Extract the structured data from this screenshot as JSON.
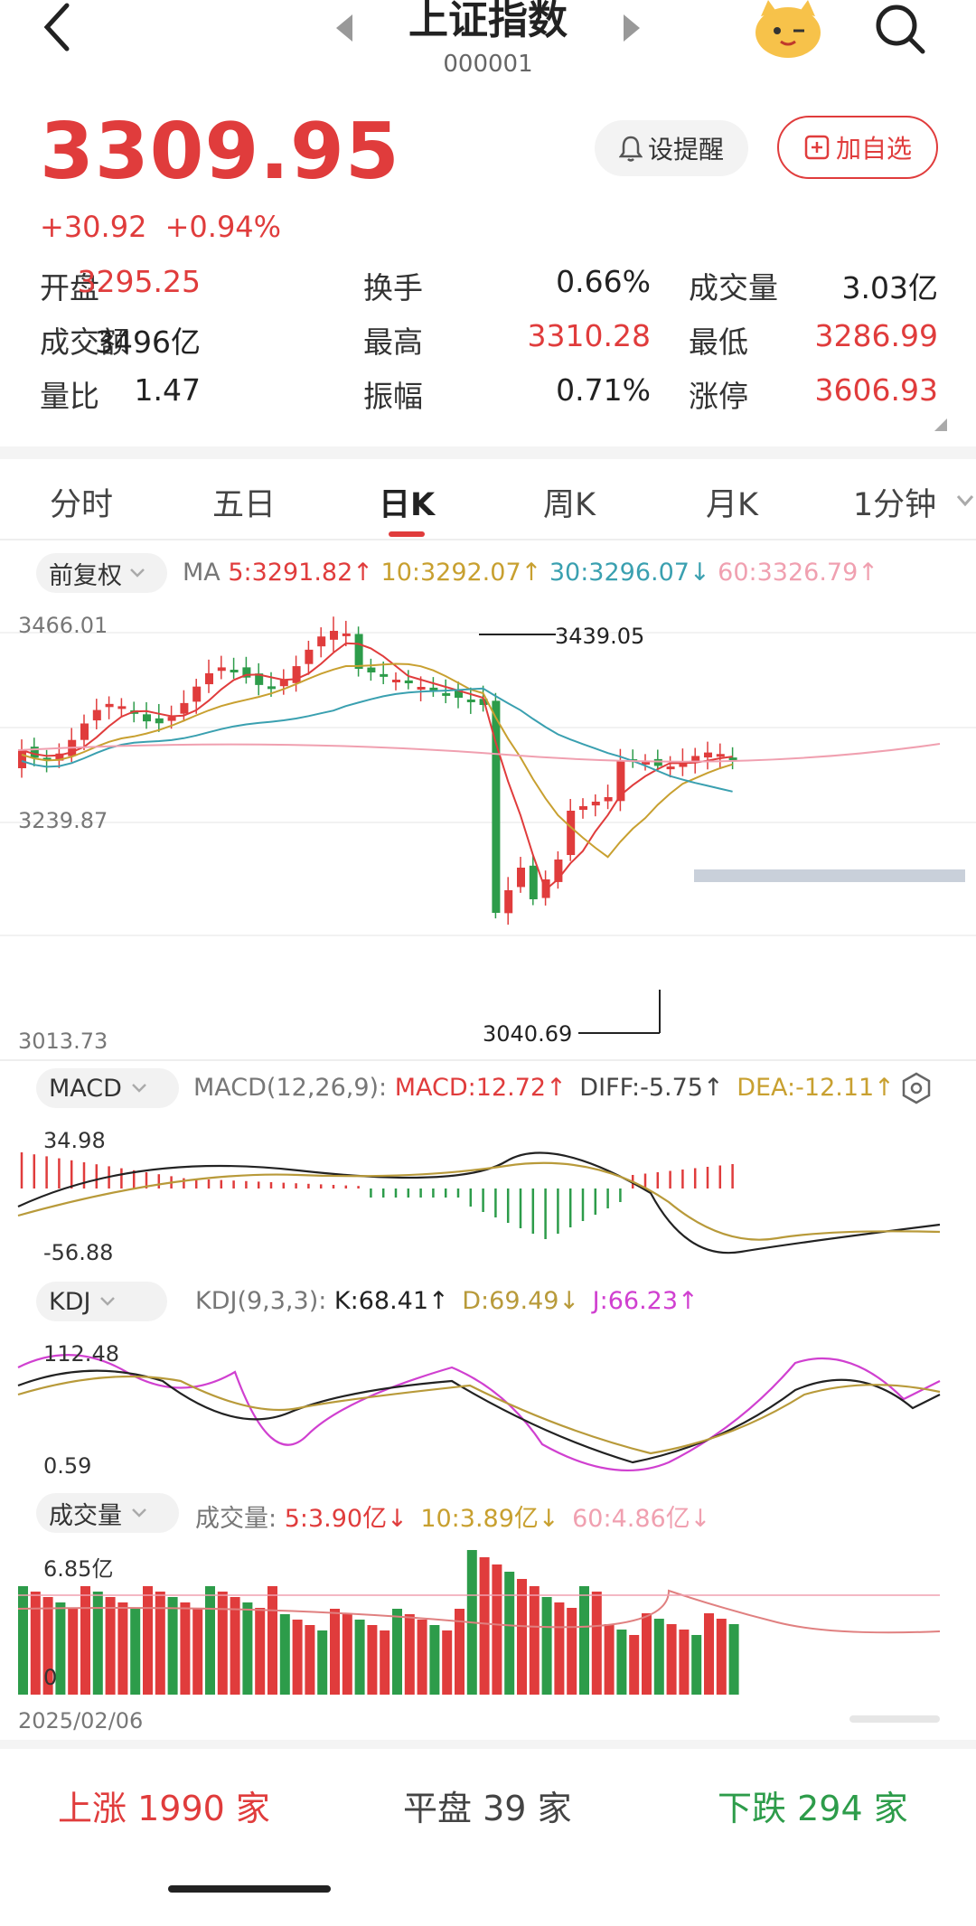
{
  "header": {
    "title": "上证指数",
    "code": "000001",
    "back_icon": "back-chevron-icon",
    "prev_icon": "left-triangle-icon",
    "next_icon": "right-triangle-icon",
    "mascot_icon": "mascot-face-icon",
    "search_icon": "search-icon"
  },
  "quote": {
    "price": "3309.95",
    "change": "+30.92",
    "change_pct": "+0.94%",
    "alert_label": "设提醒",
    "watchlist_label": "加自选"
  },
  "stats": [
    [
      {
        "label": "开盘",
        "value": "3295.25",
        "color": "#e03c3c"
      },
      {
        "label": "换手",
        "value": "0.66%",
        "color": "#222222"
      },
      {
        "label": "成交量",
        "value": "3.03亿",
        "color": "#222222"
      }
    ],
    [
      {
        "label": "成交额",
        "value": "3496亿",
        "color": "#222222"
      },
      {
        "label": "最高",
        "value": "3310.28",
        "color": "#e03c3c"
      },
      {
        "label": "最低",
        "value": "3286.99",
        "color": "#e03c3c"
      }
    ],
    [
      {
        "label": "量比",
        "value": "1.47",
        "color": "#222222"
      },
      {
        "label": "振幅",
        "value": "0.71%",
        "color": "#222222"
      },
      {
        "label": "涨停",
        "value": "3606.93",
        "color": "#e03c3c"
      }
    ]
  ],
  "tabs": [
    {
      "label": "分时",
      "active": false
    },
    {
      "label": "五日",
      "active": false
    },
    {
      "label": "日K",
      "active": true
    },
    {
      "label": "周K",
      "active": false
    },
    {
      "label": "月K",
      "active": false
    },
    {
      "label": "1分钟",
      "active": false
    }
  ],
  "ma_bar": {
    "adjust_label": "前复权",
    "ma_prefix": "MA",
    "ma5": "5:3291.82↑",
    "ma10": "10:3292.07↑",
    "ma30": "30:3296.07↓",
    "ma60": "60:3326.79↑",
    "colors": {
      "ma5": "#e03c3c",
      "ma10": "#c8a030",
      "ma30": "#3aa0b0",
      "ma60": "#f0a0b0"
    }
  },
  "kline": {
    "y_max_label": "3466.01",
    "y_mid_label": "3239.87",
    "y_min_label": "3013.73",
    "high_annotation": "3439.05",
    "low_annotation": "3040.69"
  },
  "macd": {
    "pill_label": "MACD",
    "params": "MACD(12,26,9):",
    "macd_value": "MACD:12.72↑",
    "diff_value": "DIFF:-5.75↑",
    "dea_value": "DEA:-12.11↑",
    "y_max_label": "34.98",
    "y_min_label": "-56.88",
    "settings_icon": "hexagon-settings-icon"
  },
  "kdj": {
    "pill_label": "KDJ",
    "params": "KDJ(9,3,3):",
    "k_value": "K:68.41↑",
    "d_value": "D:69.49↓",
    "j_value": "J:66.23↑",
    "y_max_label": "112.48",
    "y_min_label": "0.59"
  },
  "volume": {
    "pill_label": "成交量",
    "prefix": "成交量:",
    "ma5": "5:3.90亿↓",
    "ma10": "10:3.89亿↓",
    "ma60": "60:4.86亿↓",
    "y_max_label": "6.85亿",
    "y_min_label": "0",
    "start_date": "2025/02/06"
  },
  "breadth": {
    "up_label": "上涨",
    "up_count": "1990",
    "up_unit": "家",
    "flat_label": "平盘",
    "flat_count": "39",
    "flat_unit": "家",
    "down_label": "下跌",
    "down_count": "294",
    "down_unit": "家"
  },
  "colors": {
    "up": "#e03c3c",
    "down": "#2d9c4a",
    "kdj_k": "#222222",
    "kdj_d": "#b89a3a",
    "kdj_j": "#d040d0"
  }
}
